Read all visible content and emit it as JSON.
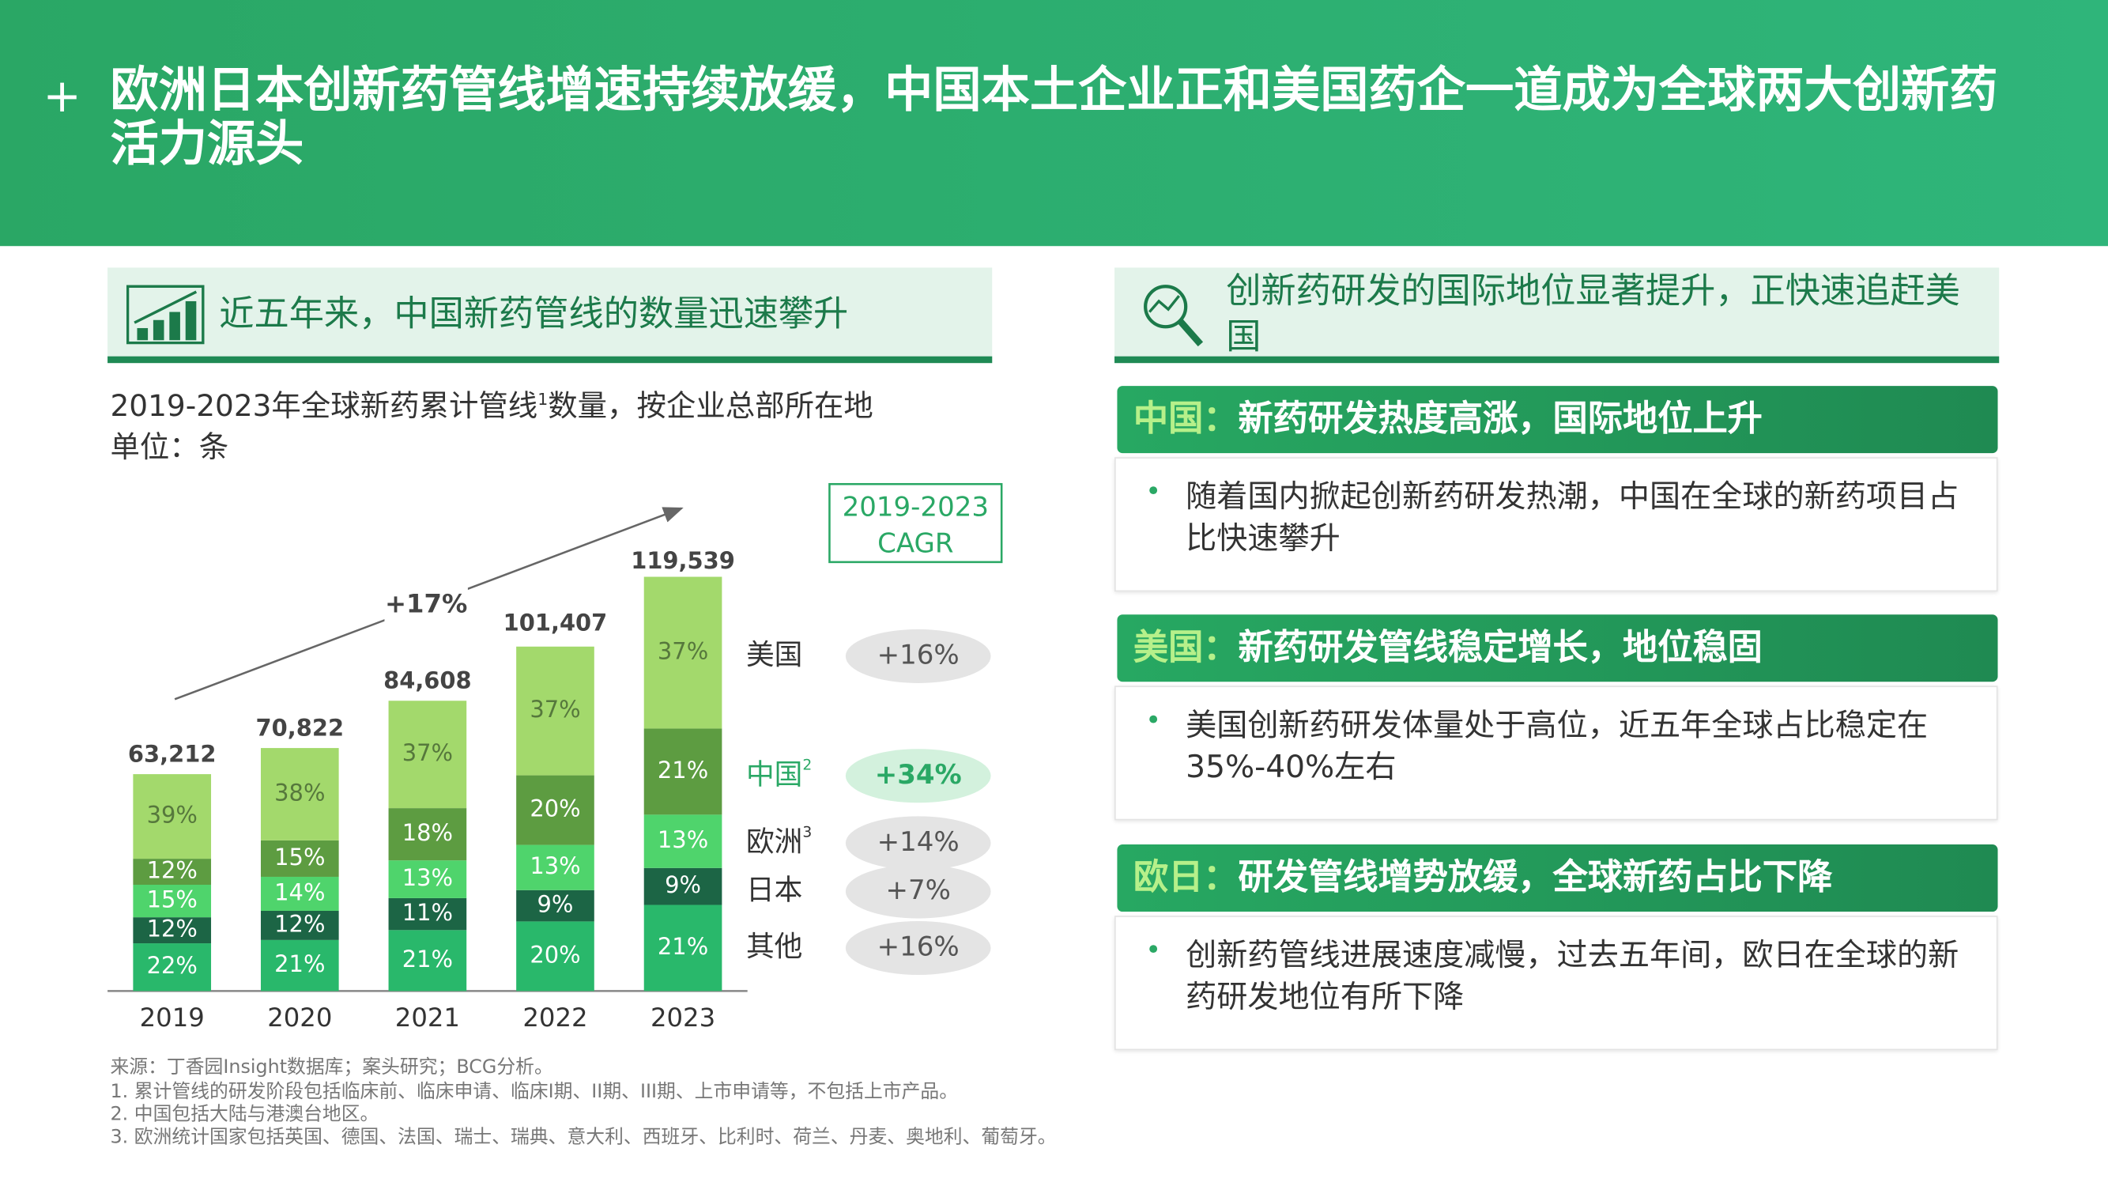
{
  "header": {
    "title": "欧洲日本创新药管线增速持续放缓，中国本土企业正和美国药企一道成为全球两大创新药活力源头"
  },
  "left_panel": {
    "heading": "近五年来，中国新药管线的数量迅速攀升",
    "subtitle": "2019-2023年全球新药累计管线",
    "subtitle_note": "1",
    "subtitle_rest": "数量，按企业总部所在地",
    "unit": "单位：条"
  },
  "chart_data": {
    "type": "stacked_bar",
    "categories": [
      "2019",
      "2020",
      "2021",
      "2022",
      "2023"
    ],
    "totals": {
      "values": [
        63212,
        70822,
        84608,
        101407,
        119539
      ],
      "value_labels": [
        "63,212",
        "70,822",
        "84,608",
        "101,407",
        "119,539"
      ]
    },
    "annotation": {
      "value": 17,
      "label": "+17%"
    },
    "cagr_title": [
      "2019-2023",
      "CAGR"
    ],
    "series": [
      {
        "name": "其他",
        "color": "#29b86b",
        "label_color": "#ffffff",
        "values": [
          22,
          21,
          21,
          20,
          21
        ],
        "value_labels": [
          "22%",
          "21%",
          "21%",
          "20%",
          "21%"
        ],
        "cagr": {
          "value": 16,
          "label": "+16%"
        },
        "pill_color": "#e4e4e4",
        "name_color": "#333333"
      },
      {
        "name": "日本",
        "color": "#1c6545",
        "label_color": "#ffffff",
        "values": [
          12,
          12,
          11,
          9,
          9
        ],
        "value_labels": [
          "12%",
          "12%",
          "11%",
          "9%",
          "9%"
        ],
        "cagr": {
          "value": 7,
          "label": "+7%"
        },
        "pill_color": "#e4e4e4",
        "name_color": "#333333"
      },
      {
        "name": "欧洲",
        "note": "3",
        "color": "#4fd46c",
        "label_color": "#ffffff",
        "values": [
          15,
          14,
          13,
          13,
          13
        ],
        "value_labels": [
          "15%",
          "14%",
          "13%",
          "13%",
          "13%"
        ],
        "cagr": {
          "value": 14,
          "label": "+14%"
        },
        "pill_color": "#e4e4e4",
        "name_color": "#333333"
      },
      {
        "name": "中国",
        "note": "2",
        "color": "#5d9c41",
        "label_color": "#ffffff",
        "values": [
          12,
          15,
          18,
          20,
          21
        ],
        "value_labels": [
          "12%",
          "15%",
          "18%",
          "20%",
          "21%"
        ],
        "cagr": {
          "value": 34,
          "label": "+34%"
        },
        "pill_color": "#d3f1dd",
        "name_color": "#2aa865"
      },
      {
        "name": "美国",
        "color": "#a3d96c",
        "label_color": "#56783c",
        "values": [
          39,
          38,
          37,
          37,
          37
        ],
        "value_labels": [
          "39%",
          "38%",
          "37%",
          "37%",
          "37%"
        ],
        "cagr": {
          "value": 16,
          "label": "+16%"
        },
        "pill_color": "#e4e4e4",
        "name_color": "#333333"
      }
    ]
  },
  "right_panel": {
    "heading": "创新药研发的国际地位显著提升，正快速追赶美国",
    "sections": [
      {
        "label": "中国：",
        "title": "新药研发热度高涨，国际地位上升",
        "bullet": "随着国内掀起创新药研发热潮，中国在全球的新药项目占比快速攀升"
      },
      {
        "label": "美国：",
        "title": "新药研发管线稳定增长，地位稳固",
        "bullet": "美国创新药研发体量处于高位，近五年全球占比稳定在35%-40%左右"
      },
      {
        "label": "欧日：",
        "title": "研发管线增势放缓，全球新药占比下降",
        "bullet": "创新药管线进展速度减慢，过去五年间，欧日在全球的新药研发地位有所下降"
      }
    ]
  },
  "footnotes": [
    "来源：丁香园Insight数据库；案头研究；BCG分析。",
    "1. 累计管线的研发阶段包括临床前、临床申请、临床I期、II期、III期、上市申请等，不包括上市产品。",
    "2. 中国包括大陆与港澳台地区。",
    "3. 欧洲统计国家包括英国、德国、法国、瑞士、瑞典、意大利、西班牙、比利时、荷兰、丹麦、奥地利、葡萄牙。"
  ]
}
